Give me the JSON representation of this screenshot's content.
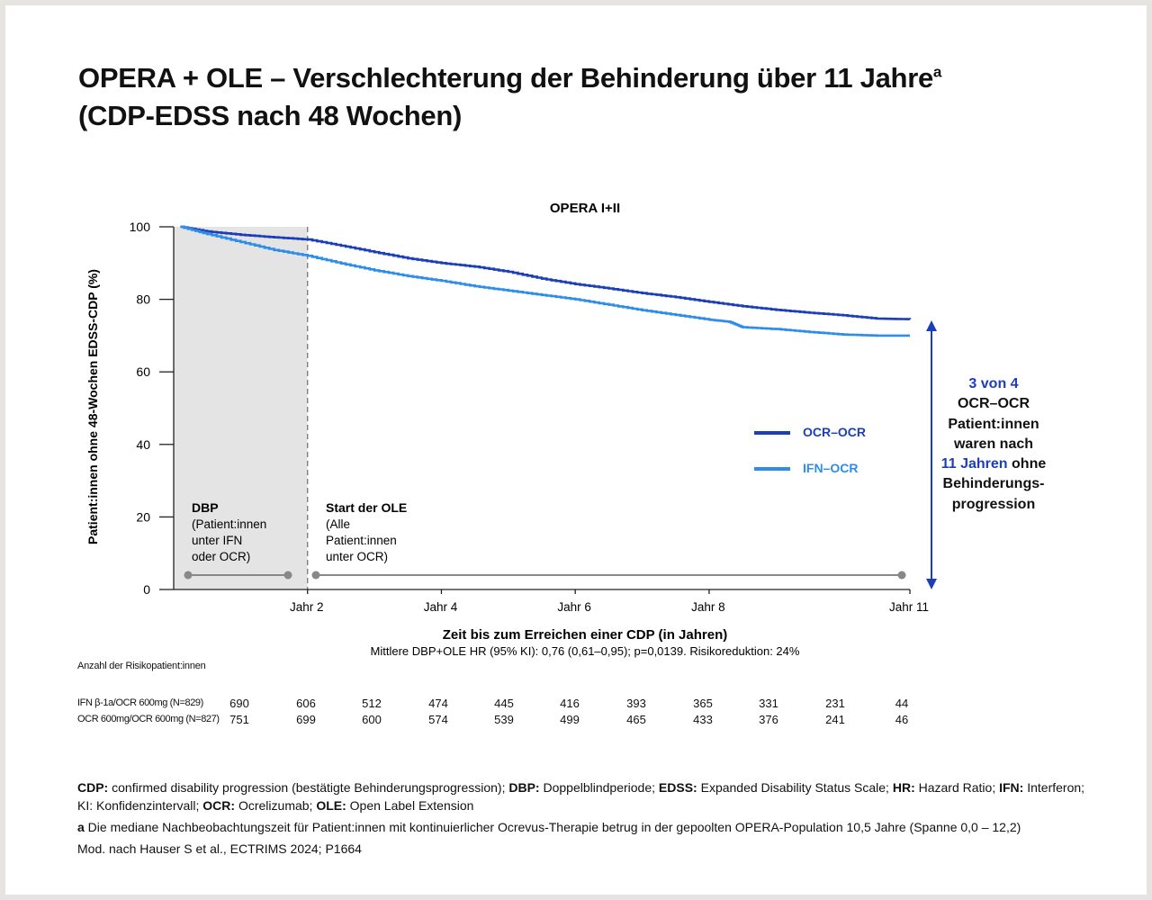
{
  "title": {
    "line1": "OPERA + OLE – Verschlechterung der Behinderung über 11 Jahre",
    "sup": "a",
    "line2": "(CDP-EDSS nach 48 Wochen)"
  },
  "chart_data": {
    "type": "line",
    "title": "OPERA I+II",
    "ylabel": "Patient:innen ohne 48-Wochen EDSS-CDP (%)",
    "xlabel": "Zeit bis zum Erreichen einer CDP (in Jahren)",
    "subtitle": "Mittlere DBP+OLE HR (95% KI): 0,76 (0,61–0,95); p=0,0139. Risikoreduktion: 24%",
    "xlim": [
      0,
      11
    ],
    "ylim": [
      0,
      100
    ],
    "yticks": [
      0,
      20,
      40,
      60,
      80,
      100
    ],
    "xticks": [
      {
        "x": 2,
        "label": "Jahr 2"
      },
      {
        "x": 4,
        "label": "Jahr 4"
      },
      {
        "x": 6,
        "label": "Jahr 6"
      },
      {
        "x": 8,
        "label": "Jahr 8"
      },
      {
        "x": 11,
        "label": "Jahr 11"
      }
    ],
    "legend_position": "center-right",
    "series": [
      {
        "name": "OCR–OCR",
        "color": "#1c3fb7",
        "x": [
          0.1,
          0.5,
          1.0,
          1.5,
          2.0,
          2.5,
          3.0,
          3.5,
          4.0,
          4.5,
          5.0,
          5.5,
          6.0,
          6.5,
          7.0,
          7.5,
          8.0,
          8.5,
          9.0,
          9.5,
          10.0,
          10.5,
          11.0
        ],
        "y": [
          100,
          98.7,
          97.8,
          97.1,
          96.5,
          94.8,
          93.0,
          91.3,
          90.0,
          89.0,
          87.6,
          85.7,
          84.2,
          83.0,
          81.7,
          80.6,
          79.3,
          78.1,
          77.1,
          76.3,
          75.6,
          74.7,
          74.5
        ]
      },
      {
        "name": "IFN–OCR",
        "color": "#2e8de9",
        "x": [
          0.1,
          0.5,
          1.0,
          1.5,
          2.0,
          2.5,
          3.0,
          3.5,
          4.0,
          4.5,
          5.0,
          5.5,
          6.0,
          6.5,
          7.0,
          7.5,
          8.0,
          8.3,
          8.5,
          9.0,
          9.5,
          10.0,
          10.5,
          11.0
        ],
        "y": [
          100,
          98.0,
          95.8,
          93.6,
          92.0,
          89.9,
          88.0,
          86.4,
          85.1,
          83.6,
          82.4,
          81.2,
          80.0,
          78.5,
          77.0,
          75.7,
          74.4,
          73.8,
          72.3,
          71.8,
          71.0,
          70.3,
          70.0,
          70.0
        ]
      }
    ],
    "annotations": {
      "dbp": {
        "title": "DBP",
        "text": [
          "(Patient:innen",
          "unter IFN",
          "oder OCR)"
        ]
      },
      "ole": {
        "title": "Start der OLE",
        "text": [
          "(Alle",
          "Patient:innen",
          "unter OCR)"
        ]
      }
    }
  },
  "callout": {
    "l1": "3 von 4",
    "l2": "OCR–OCR",
    "l3": "Patient:innen",
    "l4": "waren nach",
    "l5a": "11 Jahren",
    "l5b": " ohne",
    "l6": "Behinderungs-",
    "l7": "progression"
  },
  "risk_table": {
    "title": "Anzahl der Risikopatient:innen",
    "rows": [
      {
        "label": "IFN β-1a/OCR 600mg (N=829)",
        "values": [
          "690",
          "606",
          "512",
          "474",
          "445",
          "416",
          "393",
          "365",
          "331",
          "231",
          "44"
        ]
      },
      {
        "label": "OCR 600mg/OCR 600mg (N=827)",
        "values": [
          "751",
          "699",
          "600",
          "574",
          "539",
          "499",
          "465",
          "433",
          "376",
          "241",
          "46"
        ]
      }
    ]
  },
  "footer": {
    "abbr": [
      {
        "term": "CDP:",
        "text": " confirmed disability progression (bestätigte Behinderungsprogression); "
      },
      {
        "term": "DBP:",
        "text": " Doppelblindperiode; "
      },
      {
        "term": "EDSS:",
        "text": " Expanded Disability Status Scale; "
      },
      {
        "term": "HR:",
        "text": " Hazard Ratio; "
      },
      {
        "term": "IFN:",
        "text": " Interferon; KI: Konfidenzintervall; "
      },
      {
        "term": "OCR:",
        "text": " Ocrelizumab; "
      },
      {
        "term": "OLE:",
        "text": " Open Label Extension"
      }
    ],
    "note_mark": "a",
    "note": " Die mediane Nachbeobachtungszeit für Patient:innen mit kontinuierlicher Ocrevus-Therapie betrug in der gepoolten OPERA-Population 10,5 Jahre (Spanne 0,0 – 12,2)",
    "source": "Mod. nach Hauser S et al., ECTRIMS 2024; P1664"
  }
}
